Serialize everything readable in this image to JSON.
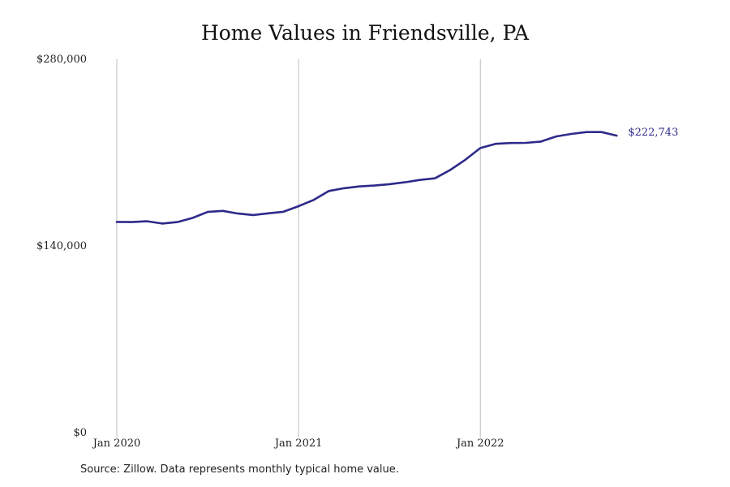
{
  "chart_data": {
    "type": "line",
    "title": "Home Values in Friendsville, PA",
    "xlabel": "",
    "ylabel": "",
    "ylim": [
      0,
      280000
    ],
    "xlim": [
      "2020-01",
      "2022-11"
    ],
    "y_ticks": [
      {
        "value": 0,
        "label": "$0"
      },
      {
        "value": 140000,
        "label": "$140,000"
      },
      {
        "value": 280000,
        "label": "$280,000"
      }
    ],
    "x_ticks": [
      {
        "value": "2020-01",
        "label": "Jan 2020"
      },
      {
        "value": "2021-01",
        "label": "Jan 2021"
      },
      {
        "value": "2022-01",
        "label": "Jan 2022"
      }
    ],
    "grid": {
      "vertical": true,
      "horizontal": false
    },
    "line_color": "#2e2a8a",
    "end_label": "$222,743",
    "series": [
      {
        "x": [
          "2020-01",
          "2020-02",
          "2020-03",
          "2020-04",
          "2020-05",
          "2020-06",
          "2020-07",
          "2020-08",
          "2020-09",
          "2020-10",
          "2020-11",
          "2020-12",
          "2021-01",
          "2021-02",
          "2021-03",
          "2021-04",
          "2021-05",
          "2021-06",
          "2021-07",
          "2021-08",
          "2021-09",
          "2021-10",
          "2021-11",
          "2021-12",
          "2022-01",
          "2022-02",
          "2022-03",
          "2022-04",
          "2022-05",
          "2022-06",
          "2022-07",
          "2022-08",
          "2022-09",
          "2022-10"
        ],
        "values": [
          158000,
          157900,
          158500,
          156800,
          157900,
          161000,
          165500,
          166300,
          164300,
          163200,
          164500,
          165600,
          169800,
          174500,
          181200,
          183300,
          184600,
          185300,
          186300,
          187700,
          189500,
          190700,
          196900,
          204600,
          213400,
          216600,
          217200,
          217300,
          218300,
          222100,
          224000,
          225400,
          225400,
          222743
        ]
      }
    ]
  },
  "source_note": "Source: Zillow. Data represents monthly typical home value."
}
